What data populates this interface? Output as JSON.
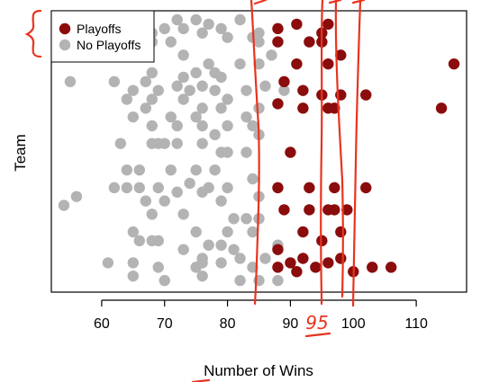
{
  "chart_data": {
    "type": "scatter",
    "title": "",
    "xlabel": "Number of Wins",
    "ylabel": "Team",
    "xlim": [
      52,
      118
    ],
    "ylim": [
      0,
      30
    ],
    "xticks": [
      60,
      70,
      80,
      90,
      100,
      110
    ],
    "grid": false,
    "legend": {
      "placement": "top-left"
    },
    "series": [
      {
        "name": "Playoffs",
        "color": "#8b0c0c",
        "points": [
          [
            91,
            29.5
          ],
          [
            96,
            29.5
          ],
          [
            88,
            29
          ],
          [
            95,
            28.5
          ],
          [
            88,
            27.5
          ],
          [
            93,
            27.5
          ],
          [
            95,
            27.5
          ],
          [
            98,
            26
          ],
          [
            91,
            25
          ],
          [
            96,
            25
          ],
          [
            116,
            25
          ],
          [
            89,
            23
          ],
          [
            92,
            22
          ],
          [
            95,
            21.5
          ],
          [
            98,
            21.5
          ],
          [
            102,
            21.5
          ],
          [
            88,
            20.5
          ],
          [
            92,
            20
          ],
          [
            96,
            20
          ],
          [
            97,
            20
          ],
          [
            114,
            20
          ],
          [
            90,
            15
          ],
          [
            88,
            11
          ],
          [
            93,
            11
          ],
          [
            97,
            11
          ],
          [
            102,
            11
          ],
          [
            89,
            8.5
          ],
          [
            93,
            8.5
          ],
          [
            96,
            8.5
          ],
          [
            97,
            8.5
          ],
          [
            99,
            8.5
          ],
          [
            92,
            6
          ],
          [
            98,
            6
          ],
          [
            95,
            5
          ],
          [
            88,
            4
          ],
          [
            92,
            3
          ],
          [
            90,
            2.5
          ],
          [
            96,
            2.5
          ],
          [
            98,
            3
          ],
          [
            103,
            2
          ],
          [
            106,
            2
          ],
          [
            94,
            2
          ],
          [
            88,
            2
          ],
          [
            91,
            1.5
          ],
          [
            100,
            1.5
          ]
        ]
      },
      {
        "name": "No Playoffs",
        "color": "#b3b3b3",
        "points": [
          [
            72,
            30
          ],
          [
            75,
            30
          ],
          [
            82,
            30
          ],
          [
            77,
            29.5
          ],
          [
            66,
            29
          ],
          [
            70,
            29
          ],
          [
            73,
            29
          ],
          [
            79,
            29
          ],
          [
            62,
            28.5
          ],
          [
            68,
            28.5
          ],
          [
            76,
            28.5
          ],
          [
            85,
            28.5
          ],
          [
            80,
            28
          ],
          [
            84,
            28
          ],
          [
            68,
            27.5
          ],
          [
            71,
            27.5
          ],
          [
            85,
            27.5
          ],
          [
            87,
            26
          ],
          [
            73,
            26
          ],
          [
            77,
            25
          ],
          [
            82,
            25
          ],
          [
            85,
            25
          ],
          [
            68,
            24
          ],
          [
            75,
            24
          ],
          [
            78,
            24
          ],
          [
            73,
            23.5
          ],
          [
            79,
            23.5
          ],
          [
            55,
            23
          ],
          [
            62,
            23
          ],
          [
            67,
            23
          ],
          [
            72,
            22.5
          ],
          [
            76,
            22.5
          ],
          [
            86,
            22.5
          ],
          [
            65,
            22
          ],
          [
            69,
            22
          ],
          [
            74,
            22
          ],
          [
            78,
            22
          ],
          [
            83,
            22
          ],
          [
            89,
            22
          ],
          [
            64,
            21
          ],
          [
            68,
            21
          ],
          [
            73,
            21
          ],
          [
            80,
            21
          ],
          [
            67,
            20
          ],
          [
            76,
            20
          ],
          [
            79,
            20
          ],
          [
            85,
            20
          ],
          [
            65,
            19
          ],
          [
            71,
            19
          ],
          [
            75,
            19
          ],
          [
            83,
            19
          ],
          [
            84,
            18
          ],
          [
            76,
            18
          ],
          [
            80,
            18
          ],
          [
            68,
            18
          ],
          [
            72,
            18
          ],
          [
            78,
            17
          ],
          [
            85,
            17
          ],
          [
            63,
            16
          ],
          [
            68,
            16
          ],
          [
            69,
            16
          ],
          [
            70,
            16
          ],
          [
            72,
            16
          ],
          [
            76,
            16
          ],
          [
            80,
            15
          ],
          [
            79,
            15
          ],
          [
            83,
            15
          ],
          [
            66,
            13
          ],
          [
            64,
            13
          ],
          [
            71,
            13
          ],
          [
            75,
            13
          ],
          [
            78,
            13
          ],
          [
            84,
            12
          ],
          [
            74,
            11.5
          ],
          [
            77,
            11
          ],
          [
            80,
            11
          ],
          [
            62,
            11
          ],
          [
            64,
            11
          ],
          [
            66,
            11
          ],
          [
            69,
            11
          ],
          [
            72,
            10.5
          ],
          [
            76,
            10.5
          ],
          [
            85,
            10
          ],
          [
            67,
            9.5
          ],
          [
            70,
            9.5
          ],
          [
            79,
            9.5
          ],
          [
            54,
            9
          ],
          [
            56,
            10
          ],
          [
            68,
            8
          ],
          [
            73,
            8
          ],
          [
            81,
            7.5
          ],
          [
            83,
            7.5
          ],
          [
            85,
            7.5
          ],
          [
            65,
            6
          ],
          [
            75,
            6
          ],
          [
            80,
            6
          ],
          [
            84,
            6
          ],
          [
            66,
            5
          ],
          [
            68,
            5
          ],
          [
            69,
            5
          ],
          [
            77,
            4.5
          ],
          [
            79,
            4.5
          ],
          [
            82,
            3
          ],
          [
            86,
            3
          ],
          [
            81,
            4
          ],
          [
            88,
            4.5
          ],
          [
            73,
            4
          ],
          [
            76,
            3
          ],
          [
            65,
            2.5
          ],
          [
            61,
            2.5
          ],
          [
            69,
            2
          ],
          [
            75,
            2
          ],
          [
            76,
            2.5
          ],
          [
            79,
            2.5
          ],
          [
            84,
            2
          ],
          [
            65,
            1
          ],
          [
            70,
            0.5
          ],
          [
            76,
            1
          ],
          [
            82,
            0.5
          ],
          [
            85,
            0.5
          ],
          [
            88,
            0.5
          ]
        ]
      }
    ],
    "annotations": [
      {
        "text": "95"
      }
    ]
  }
}
